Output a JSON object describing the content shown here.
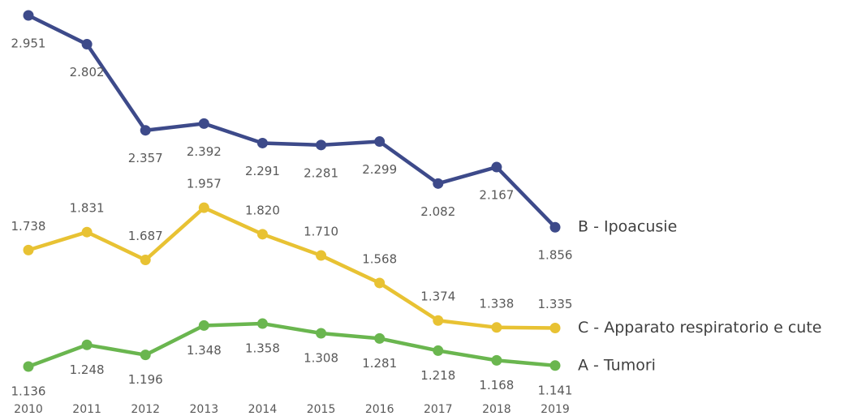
{
  "chart_data": {
    "type": "line",
    "categories": [
      "2010",
      "2011",
      "2012",
      "2013",
      "2014",
      "2015",
      "2016",
      "2017",
      "2018",
      "2019"
    ],
    "series": [
      {
        "name": "B - Ipoacusie",
        "color": "#3d4a8a",
        "values": [
          2951,
          2802,
          2357,
          2392,
          2291,
          2281,
          2299,
          2082,
          2167,
          1856
        ],
        "value_labels": [
          "2.951",
          "2.802",
          "2.357",
          "2.392",
          "2.291",
          "2.281",
          "2.299",
          "2.082",
          "2.167",
          "1.856"
        ]
      },
      {
        "name": "C - Apparato respiratorio e cute",
        "color": "#e8c233",
        "values": [
          1738,
          1831,
          1687,
          1957,
          1820,
          1710,
          1568,
          1374,
          1338,
          1335
        ],
        "value_labels": [
          "1.738",
          "1.831",
          "1.687",
          "1.957",
          "1.820",
          "1.710",
          "1.568",
          "1.374",
          "1.338",
          "1.335"
        ]
      },
      {
        "name": "A - Tumori",
        "color": "#6ab64f",
        "values": [
          1136,
          1248,
          1196,
          1348,
          1358,
          1308,
          1281,
          1218,
          1168,
          1141
        ],
        "value_labels": [
          "1.136",
          "1.248",
          "1.196",
          "1.348",
          "1.358",
          "1.308",
          "1.281",
          "1.218",
          "1.168",
          "1.141"
        ]
      }
    ]
  }
}
